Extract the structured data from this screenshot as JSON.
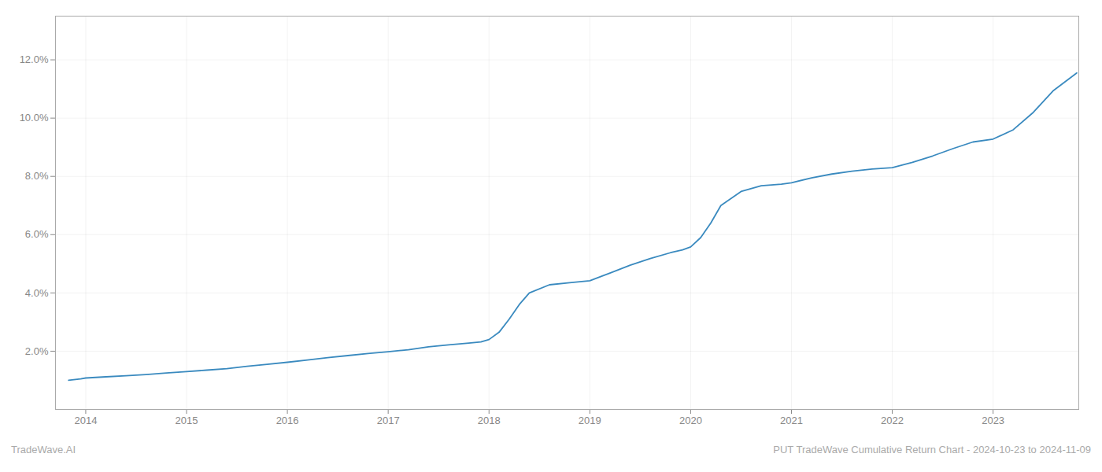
{
  "chart_data": {
    "type": "line",
    "annotations": [
      "TradeWave.AI",
      "PUT TradeWave Cumulative Return Chart - 2024-10-23 to 2024-11-09"
    ],
    "color": "#3a8abf",
    "grid": true,
    "x": [
      2013.83,
      2013.95,
      2014.0,
      2014.2,
      2014.4,
      2014.6,
      2014.8,
      2015.0,
      2015.2,
      2015.4,
      2015.6,
      2015.8,
      2016.0,
      2016.2,
      2016.4,
      2016.6,
      2016.8,
      2017.0,
      2017.2,
      2017.4,
      2017.6,
      2017.8,
      2017.92,
      2018.0,
      2018.1,
      2018.2,
      2018.3,
      2018.4,
      2018.6,
      2018.8,
      2019.0,
      2019.2,
      2019.4,
      2019.6,
      2019.8,
      2019.92,
      2020.0,
      2020.1,
      2020.2,
      2020.3,
      2020.5,
      2020.7,
      2020.9,
      2021.0,
      2021.2,
      2021.4,
      2021.6,
      2021.8,
      2022.0,
      2022.2,
      2022.4,
      2022.6,
      2022.8,
      2023.0,
      2023.2,
      2023.4,
      2023.6,
      2023.83
    ],
    "values": [
      0.01,
      0.0105,
      0.0108,
      0.0112,
      0.0116,
      0.012,
      0.0125,
      0.013,
      0.0135,
      0.014,
      0.0148,
      0.0155,
      0.0162,
      0.017,
      0.0178,
      0.0185,
      0.0192,
      0.0198,
      0.0205,
      0.0215,
      0.0222,
      0.0228,
      0.0232,
      0.024,
      0.0265,
      0.031,
      0.036,
      0.04,
      0.0428,
      0.0435,
      0.0442,
      0.0468,
      0.0495,
      0.0518,
      0.0538,
      0.0548,
      0.0558,
      0.059,
      0.064,
      0.07,
      0.0748,
      0.0768,
      0.0773,
      0.0778,
      0.0795,
      0.0808,
      0.0818,
      0.0825,
      0.083,
      0.0848,
      0.087,
      0.0895,
      0.0918,
      0.0928,
      0.096,
      0.102,
      0.1095,
      0.1155
    ],
    "xlim": [
      2013.7,
      2023.85
    ],
    "xticks": [
      2014,
      2015,
      2016,
      2017,
      2018,
      2019,
      2020,
      2021,
      2022,
      2023
    ],
    "ylim": [
      0.0,
      0.135
    ],
    "yticks": [
      {
        "value": 0.02,
        "label": "2.0%"
      },
      {
        "value": 0.04,
        "label": "4.0%"
      },
      {
        "value": 0.06,
        "label": "6.0%"
      },
      {
        "value": 0.08,
        "label": "8.0%"
      },
      {
        "value": 0.1,
        "label": "10.0%"
      },
      {
        "value": 0.12,
        "label": "12.0%"
      }
    ]
  }
}
